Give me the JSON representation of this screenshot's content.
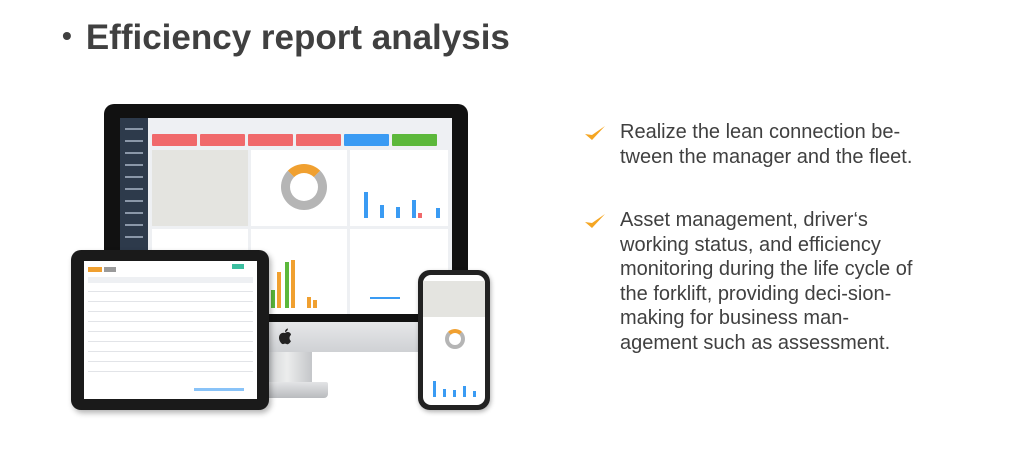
{
  "title": "Efficiency report analysis",
  "bullets": [
    {
      "icon": "check-icon",
      "text": "Realize the lean connection be-tween the manager and the fleet."
    },
    {
      "icon": "check-icon",
      "text": "Asset management, driver‘s working status, and efficiency monitoring during the life cycle of the forklift, providing deci-sion-making for business man-agement such as assessment."
    }
  ],
  "colors": {
    "accent": "#f5a623",
    "text": "#404040",
    "card_red": "#f0696b",
    "card_blue": "#3a9bf3",
    "card_green": "#5cb83b"
  }
}
